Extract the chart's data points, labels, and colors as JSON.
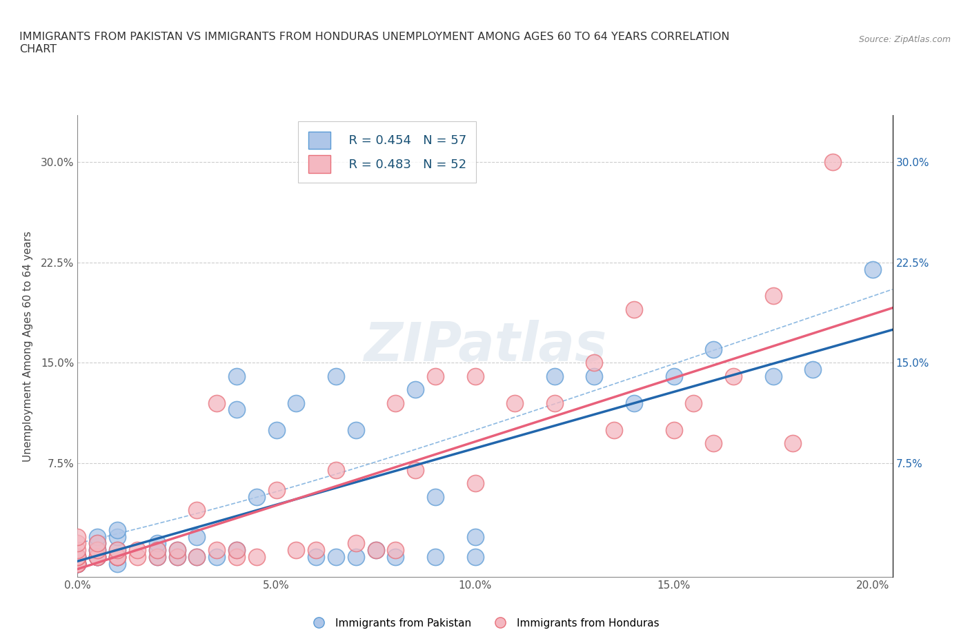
{
  "title": "IMMIGRANTS FROM PAKISTAN VS IMMIGRANTS FROM HONDURAS UNEMPLOYMENT AMONG AGES 60 TO 64 YEARS CORRELATION\nCHART",
  "source": "Source: ZipAtlas.com",
  "ylabel": "Unemployment Among Ages 60 to 64 years",
  "xlim": [
    0.0,
    0.205
  ],
  "ylim": [
    -0.01,
    0.335
  ],
  "xticks": [
    0.0,
    0.05,
    0.1,
    0.15,
    0.2
  ],
  "xticklabels": [
    "0.0%",
    "5.0%",
    "10.0%",
    "15.0%",
    "20.0%"
  ],
  "yticks": [
    0.0,
    0.075,
    0.15,
    0.225,
    0.3
  ],
  "yticklabels": [
    "",
    "7.5%",
    "15.0%",
    "22.5%",
    "30.0%"
  ],
  "pakistan_color": "#aec6e8",
  "pakistan_edge": "#5b9bd5",
  "honduras_color": "#f4b8c1",
  "honduras_edge": "#e8707a",
  "pakistan_R": 0.454,
  "pakistan_N": 57,
  "honduras_R": 0.483,
  "honduras_N": 52,
  "pakistan_line_color": "#2166ac",
  "honduras_line_color": "#e8607a",
  "pakistan_x": [
    0.0,
    0.0,
    0.0,
    0.0,
    0.0,
    0.0,
    0.0,
    0.0,
    0.0,
    0.0,
    0.005,
    0.005,
    0.005,
    0.005,
    0.005,
    0.005,
    0.005,
    0.01,
    0.01,
    0.01,
    0.01,
    0.01,
    0.01,
    0.02,
    0.02,
    0.02,
    0.025,
    0.025,
    0.03,
    0.03,
    0.035,
    0.04,
    0.04,
    0.04,
    0.045,
    0.05,
    0.055,
    0.06,
    0.065,
    0.065,
    0.07,
    0.07,
    0.075,
    0.08,
    0.085,
    0.09,
    0.09,
    0.1,
    0.1,
    0.12,
    0.13,
    0.14,
    0.15,
    0.16,
    0.175,
    0.185,
    0.2
  ],
  "pakistan_y": [
    0.0,
    0.0,
    0.0,
    0.0,
    0.0,
    0.005,
    0.005,
    0.0,
    0.0,
    0.005,
    0.005,
    0.005,
    0.005,
    0.01,
    0.01,
    0.015,
    0.02,
    0.0,
    0.005,
    0.005,
    0.01,
    0.02,
    0.025,
    0.005,
    0.01,
    0.015,
    0.005,
    0.01,
    0.005,
    0.02,
    0.005,
    0.01,
    0.115,
    0.14,
    0.05,
    0.1,
    0.12,
    0.005,
    0.005,
    0.14,
    0.005,
    0.1,
    0.01,
    0.005,
    0.13,
    0.005,
    0.05,
    0.005,
    0.02,
    0.14,
    0.14,
    0.12,
    0.14,
    0.16,
    0.14,
    0.145,
    0.22
  ],
  "honduras_x": [
    0.0,
    0.0,
    0.0,
    0.0,
    0.0,
    0.0,
    0.0,
    0.0,
    0.005,
    0.005,
    0.005,
    0.005,
    0.01,
    0.01,
    0.01,
    0.015,
    0.015,
    0.02,
    0.02,
    0.025,
    0.025,
    0.03,
    0.03,
    0.035,
    0.035,
    0.04,
    0.04,
    0.045,
    0.05,
    0.055,
    0.06,
    0.065,
    0.07,
    0.075,
    0.08,
    0.08,
    0.085,
    0.09,
    0.1,
    0.1,
    0.11,
    0.12,
    0.13,
    0.135,
    0.14,
    0.15,
    0.155,
    0.16,
    0.165,
    0.175,
    0.18,
    0.19
  ],
  "honduras_y": [
    0.0,
    0.0,
    0.0,
    0.005,
    0.005,
    0.01,
    0.015,
    0.02,
    0.005,
    0.005,
    0.01,
    0.015,
    0.005,
    0.005,
    0.01,
    0.005,
    0.01,
    0.005,
    0.01,
    0.005,
    0.01,
    0.005,
    0.04,
    0.01,
    0.12,
    0.005,
    0.01,
    0.005,
    0.055,
    0.01,
    0.01,
    0.07,
    0.015,
    0.01,
    0.01,
    0.12,
    0.07,
    0.14,
    0.06,
    0.14,
    0.12,
    0.12,
    0.15,
    0.1,
    0.19,
    0.1,
    0.12,
    0.09,
    0.14,
    0.2,
    0.09,
    0.3
  ]
}
